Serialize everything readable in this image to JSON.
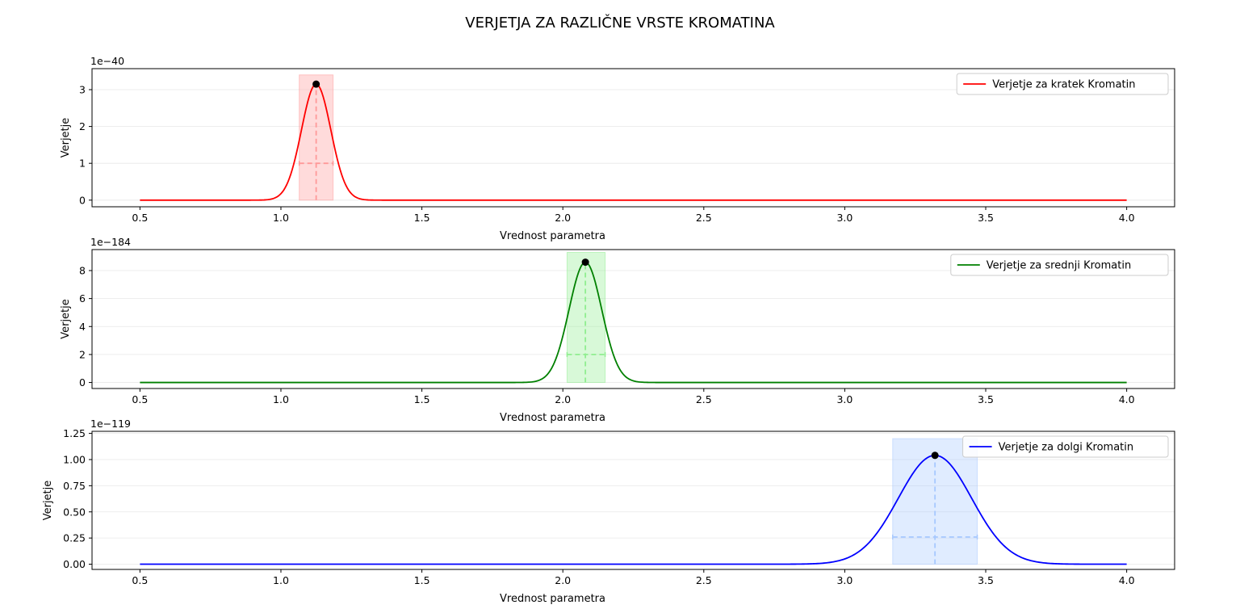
{
  "figure_title": "VERJETJA ZA RAZLIČNE VRSTE KROMATINA",
  "chart_data": [
    {
      "type": "line",
      "title": "",
      "xlabel": "Vrednost parametra",
      "ylabel": "Verjetje",
      "offset_text": "1e−40",
      "legend": "Verjetje za kratek Kromatin",
      "legend_position": "upper right",
      "color": "#ff0000",
      "band_color": "#ff9999",
      "marker_color": "#000000",
      "xlim": [
        0.33,
        4.17
      ],
      "ylim": [
        -0.18,
        3.57
      ],
      "xticks": [
        0.5,
        1.0,
        1.5,
        2.0,
        2.5,
        3.0,
        3.5,
        4.0
      ],
      "xticklabels": [
        "0.5",
        "1.0",
        "1.5",
        "2.0",
        "2.5",
        "3.0",
        "3.5",
        "4.0"
      ],
      "yticks": [
        0,
        1,
        2,
        3
      ],
      "yticklabels": [
        "0",
        "1",
        "2",
        "3"
      ],
      "grid": "horizontal",
      "series": [
        {
          "name": "Verjetje za kratek Kromatin",
          "x_range": [
            0.5,
            4.0
          ],
          "peak_x": 1.125,
          "peak_y": 3.15,
          "sigma": 0.052
        }
      ],
      "peak": {
        "x": 1.125,
        "y": 3.15
      },
      "interval": {
        "x0": 1.065,
        "x1": 1.185,
        "y_top": 3.4
      },
      "error_bar_y": 1.0
    },
    {
      "type": "line",
      "title": "",
      "xlabel": "Vrednost parametra",
      "ylabel": "Verjetje",
      "offset_text": "1e−184",
      "legend": "Verjetje za srednji Kromatin",
      "legend_position": "upper right",
      "color": "#008000",
      "band_color": "#90ee90",
      "marker_color": "#000000",
      "xlim": [
        0.33,
        4.17
      ],
      "ylim": [
        -0.43,
        9.5
      ],
      "xticks": [
        0.5,
        1.0,
        1.5,
        2.0,
        2.5,
        3.0,
        3.5,
        4.0
      ],
      "xticklabels": [
        "0.5",
        "1.0",
        "1.5",
        "2.0",
        "2.5",
        "3.0",
        "3.5",
        "4.0"
      ],
      "yticks": [
        0,
        2,
        4,
        6,
        8
      ],
      "yticklabels": [
        "0",
        "2",
        "4",
        "6",
        "8"
      ],
      "grid": "horizontal",
      "series": [
        {
          "name": "Verjetje za srednji Kromatin",
          "x_range": [
            0.5,
            4.0
          ],
          "peak_x": 2.08,
          "peak_y": 8.6,
          "sigma": 0.058
        }
      ],
      "peak": {
        "x": 2.08,
        "y": 8.6
      },
      "interval": {
        "x0": 2.015,
        "x1": 2.15,
        "y_top": 9.3
      },
      "error_bar_y": 2.0
    },
    {
      "type": "line",
      "title": "",
      "xlabel": "Vrednost parametra",
      "ylabel": "Verjetje",
      "offset_text": "1e−119",
      "legend": "Verjetje za dolgi Kromatin",
      "legend_position": "upper right",
      "color": "#0000ff",
      "band_color": "#a6c8ff",
      "marker_color": "#000000",
      "xlim": [
        0.33,
        4.17
      ],
      "ylim": [
        -0.05,
        1.27
      ],
      "xticks": [
        0.5,
        1.0,
        1.5,
        2.0,
        2.5,
        3.0,
        3.5,
        4.0
      ],
      "xticklabels": [
        "0.5",
        "1.0",
        "1.5",
        "2.0",
        "2.5",
        "3.0",
        "3.5",
        "4.0"
      ],
      "yticks": [
        0.0,
        0.25,
        0.5,
        0.75,
        1.0,
        1.25
      ],
      "yticklabels": [
        "0.00",
        "0.25",
        "0.50",
        "0.75",
        "1.00",
        "1.25"
      ],
      "grid": "horizontal",
      "series": [
        {
          "name": "Verjetje za dolgi Kromatin",
          "x_range": [
            0.5,
            4.0
          ],
          "peak_x": 3.32,
          "peak_y": 1.04,
          "sigma": 0.13
        }
      ],
      "peak": {
        "x": 3.32,
        "y": 1.04
      },
      "interval": {
        "x0": 3.17,
        "x1": 3.47,
        "y_top": 1.2
      },
      "error_bar_y": 0.26
    }
  ]
}
